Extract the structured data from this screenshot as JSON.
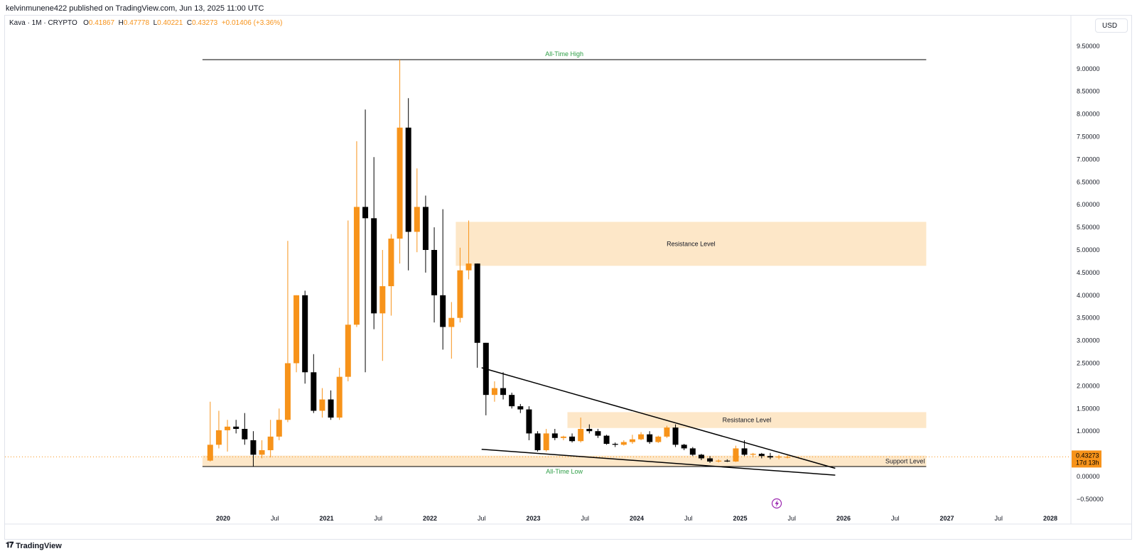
{
  "header": {
    "published": "kelvinmunene422 published on TradingView.com, Jun 13, 2025 11:00 UTC",
    "symbol": "Kava · 1M · CRYPTO",
    "o_label": "O",
    "o_value": "0.41867",
    "h_label": "H",
    "h_value": "0.47778",
    "l_label": "L",
    "l_value": "0.40221",
    "c_label": "C",
    "c_value": "0.43273",
    "change": "+0.01406 (+3.36%)",
    "currency": "USD"
  },
  "footer": {
    "brand": "TradingView",
    "logo_icon": "tradingview-logo-icon"
  },
  "colors": {
    "up": "#f7931a",
    "down": "#000000",
    "zone": "#fde7c8",
    "label_green": "#2e9e46",
    "price_tag": "#f7931a"
  },
  "chart_data": {
    "type": "candlestick",
    "y_ticks": [
      "9.50000",
      "9.00000",
      "8.50000",
      "8.00000",
      "7.50000",
      "7.00000",
      "6.50000",
      "6.00000",
      "5.50000",
      "5.00000",
      "4.50000",
      "4.00000",
      "3.50000",
      "3.00000",
      "2.50000",
      "2.00000",
      "1.50000",
      "1.00000",
      "0.50000",
      "0.00000",
      "−0.50000"
    ],
    "ylim": [
      -0.5,
      9.5
    ],
    "x_ticks": [
      {
        "label": "2020",
        "t": 2020.0,
        "bold": true
      },
      {
        "label": "Jul",
        "t": 2020.5
      },
      {
        "label": "2021",
        "t": 2021.0,
        "bold": true
      },
      {
        "label": "Jul",
        "t": 2021.5
      },
      {
        "label": "2022",
        "t": 2022.0,
        "bold": true
      },
      {
        "label": "Jul",
        "t": 2022.5
      },
      {
        "label": "2023",
        "t": 2023.0,
        "bold": true
      },
      {
        "label": "Jul",
        "t": 2023.5
      },
      {
        "label": "2024",
        "t": 2024.0,
        "bold": true
      },
      {
        "label": "Jul",
        "t": 2024.5
      },
      {
        "label": "2025",
        "t": 2025.0,
        "bold": true
      },
      {
        "label": "Jul",
        "t": 2025.5
      },
      {
        "label": "2026",
        "t": 2026.0,
        "bold": true
      },
      {
        "label": "Jul",
        "t": 2026.5
      },
      {
        "label": "2027",
        "t": 2027.0,
        "bold": true
      },
      {
        "label": "Jul",
        "t": 2027.5
      },
      {
        "label": "2028",
        "t": 2028.0,
        "bold": true
      }
    ],
    "first_candle": "2019-11",
    "candles": [
      [
        0.35,
        1.65,
        0.33,
        0.7
      ],
      [
        0.7,
        1.45,
        0.62,
        1.02
      ],
      [
        1.02,
        1.25,
        0.55,
        1.1
      ],
      [
        1.1,
        1.25,
        0.95,
        1.05
      ],
      [
        1.05,
        1.4,
        0.7,
        0.82
      ],
      [
        0.8,
        1.0,
        0.22,
        0.48
      ],
      [
        0.48,
        0.8,
        0.4,
        0.58
      ],
      [
        0.58,
        1.25,
        0.42,
        0.88
      ],
      [
        0.88,
        1.5,
        0.8,
        1.25
      ],
      [
        1.25,
        5.2,
        1.2,
        2.5
      ],
      [
        2.5,
        4.0,
        2.3,
        4.0
      ],
      [
        4.0,
        4.1,
        2.05,
        2.3
      ],
      [
        2.3,
        2.7,
        1.4,
        1.45
      ],
      [
        1.45,
        1.95,
        1.3,
        1.7
      ],
      [
        1.7,
        1.9,
        1.25,
        1.3
      ],
      [
        1.3,
        2.4,
        1.25,
        2.2
      ],
      [
        2.2,
        5.65,
        2.1,
        3.35
      ],
      [
        3.35,
        7.4,
        3.3,
        5.95
      ],
      [
        5.95,
        8.1,
        2.3,
        5.7
      ],
      [
        5.7,
        7.05,
        3.25,
        3.6
      ],
      [
        3.6,
        5.0,
        2.55,
        4.2
      ],
      [
        4.2,
        5.35,
        3.55,
        5.25
      ],
      [
        5.25,
        9.2,
        4.7,
        7.7
      ],
      [
        7.7,
        8.35,
        4.55,
        5.4
      ],
      [
        5.4,
        6.8,
        4.95,
        5.95
      ],
      [
        5.95,
        6.2,
        4.5,
        5.0
      ],
      [
        5.0,
        5.5,
        3.4,
        4.0
      ],
      [
        4.0,
        5.9,
        2.8,
        3.3
      ],
      [
        3.3,
        3.85,
        2.6,
        3.5
      ],
      [
        3.5,
        5.05,
        3.4,
        4.55
      ],
      [
        4.55,
        5.65,
        4.35,
        4.7
      ],
      [
        4.7,
        4.7,
        2.4,
        2.95
      ],
      [
        2.95,
        2.95,
        1.35,
        1.8
      ],
      [
        1.8,
        2.1,
        1.65,
        1.95
      ],
      [
        1.95,
        2.3,
        1.7,
        1.8
      ],
      [
        1.8,
        1.85,
        1.5,
        1.55
      ],
      [
        1.55,
        1.6,
        1.4,
        1.48
      ],
      [
        1.48,
        1.55,
        0.8,
        0.95
      ],
      [
        0.95,
        1.0,
        0.55,
        0.58
      ],
      [
        0.58,
        1.05,
        0.55,
        0.95
      ],
      [
        0.95,
        1.05,
        0.8,
        0.85
      ],
      [
        0.85,
        0.9,
        0.8,
        0.88
      ],
      [
        0.88,
        0.95,
        0.75,
        0.78
      ],
      [
        0.78,
        1.3,
        0.75,
        1.05
      ],
      [
        1.05,
        1.15,
        0.95,
        1.0
      ],
      [
        1.0,
        1.05,
        0.85,
        0.9
      ],
      [
        0.9,
        0.92,
        0.7,
        0.72
      ],
      [
        0.72,
        0.75,
        0.65,
        0.7
      ],
      [
        0.7,
        0.8,
        0.68,
        0.76
      ],
      [
        0.76,
        0.92,
        0.72,
        0.82
      ],
      [
        0.82,
        0.98,
        0.8,
        0.93
      ],
      [
        0.93,
        1.0,
        0.72,
        0.76
      ],
      [
        0.76,
        0.9,
        0.74,
        0.88
      ],
      [
        0.88,
        1.12,
        0.85,
        1.08
      ],
      [
        1.08,
        1.15,
        0.65,
        0.7
      ],
      [
        0.7,
        0.72,
        0.58,
        0.62
      ],
      [
        0.62,
        0.65,
        0.45,
        0.48
      ],
      [
        0.48,
        0.5,
        0.36,
        0.4
      ],
      [
        0.4,
        0.45,
        0.3,
        0.33
      ],
      [
        0.33,
        0.38,
        0.31,
        0.35
      ],
      [
        0.35,
        0.38,
        0.32,
        0.33
      ],
      [
        0.33,
        0.68,
        0.32,
        0.62
      ],
      [
        0.62,
        0.8,
        0.45,
        0.48
      ],
      [
        0.48,
        0.52,
        0.42,
        0.5
      ],
      [
        0.5,
        0.52,
        0.4,
        0.45
      ],
      [
        0.45,
        0.52,
        0.38,
        0.42
      ],
      [
        0.42,
        0.48,
        0.38,
        0.44
      ],
      [
        0.42,
        0.48,
        0.4,
        0.43
      ]
    ],
    "horizontal_lines": [
      {
        "label": "All-Time High",
        "value": 9.2,
        "t1": 2019.8,
        "t2": 2026.8,
        "label_pos": "above-center"
      },
      {
        "label": "All-Time Low",
        "value": 0.22,
        "t1": 2019.8,
        "t2": 2026.8,
        "label_pos": "below-center"
      }
    ],
    "zones": [
      {
        "label": "Resistance Level",
        "y1": 4.65,
        "y2": 5.62,
        "t1": 2022.25,
        "t2": 2026.8
      },
      {
        "label": "Resistance Level",
        "y1": 1.07,
        "y2": 1.42,
        "t1": 2023.33,
        "t2": 2026.8
      },
      {
        "label": "Support Level",
        "y1": 0.22,
        "y2": 0.46,
        "t1": 2019.8,
        "t2": 2026.8,
        "label_pos": "right"
      }
    ],
    "trendlines": [
      {
        "t1": 2022.5,
        "v1": 2.4,
        "t2": 2025.92,
        "v2": 0.18
      },
      {
        "t1": 2022.5,
        "v1": 0.6,
        "t2": 2025.92,
        "v2": 0.03
      }
    ],
    "current_price": {
      "value": 0.43273,
      "label": "0.43273",
      "countdown": "17d 13h"
    },
    "marker_icon": "lightning-icon"
  }
}
